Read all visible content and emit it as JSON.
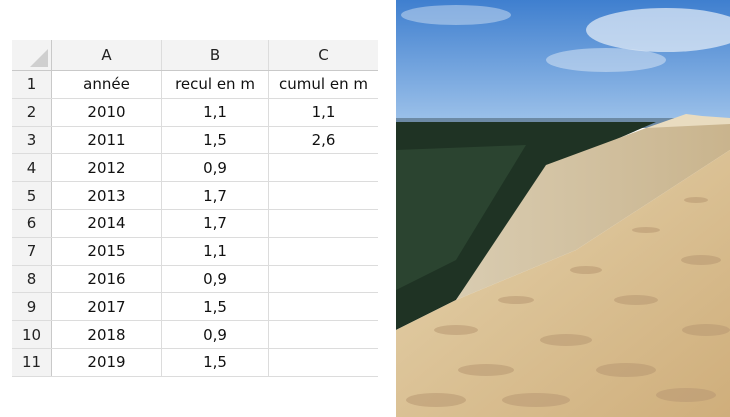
{
  "sheet": {
    "columns": [
      "A",
      "B",
      "C"
    ],
    "rows": [
      {
        "num": "1",
        "a": "année",
        "b": "recul en m",
        "c": "cumul en m"
      },
      {
        "num": "2",
        "a": "2010",
        "b": "1,1",
        "c": "1,1"
      },
      {
        "num": "3",
        "a": "2011",
        "b": "1,5",
        "c": "2,6"
      },
      {
        "num": "4",
        "a": "2012",
        "b": "0,9",
        "c": ""
      },
      {
        "num": "5",
        "a": "2013",
        "b": "1,7",
        "c": ""
      },
      {
        "num": "6",
        "a": "2014",
        "b": "1,7",
        "c": ""
      },
      {
        "num": "7",
        "a": "2015",
        "b": "1,1",
        "c": ""
      },
      {
        "num": "8",
        "a": "2016",
        "b": "0,9",
        "c": ""
      },
      {
        "num": "9",
        "a": "2017",
        "b": "1,5",
        "c": ""
      },
      {
        "num": "10",
        "a": "2018",
        "b": "0,9",
        "c": ""
      },
      {
        "num": "11",
        "a": "2019",
        "b": "1,5",
        "c": ""
      }
    ]
  },
  "photo": {
    "colors": {
      "sky": "#5b94d6",
      "forest": "#1f3324",
      "sand": "#dcc49a",
      "sand_shadow": "#b5946a"
    }
  }
}
